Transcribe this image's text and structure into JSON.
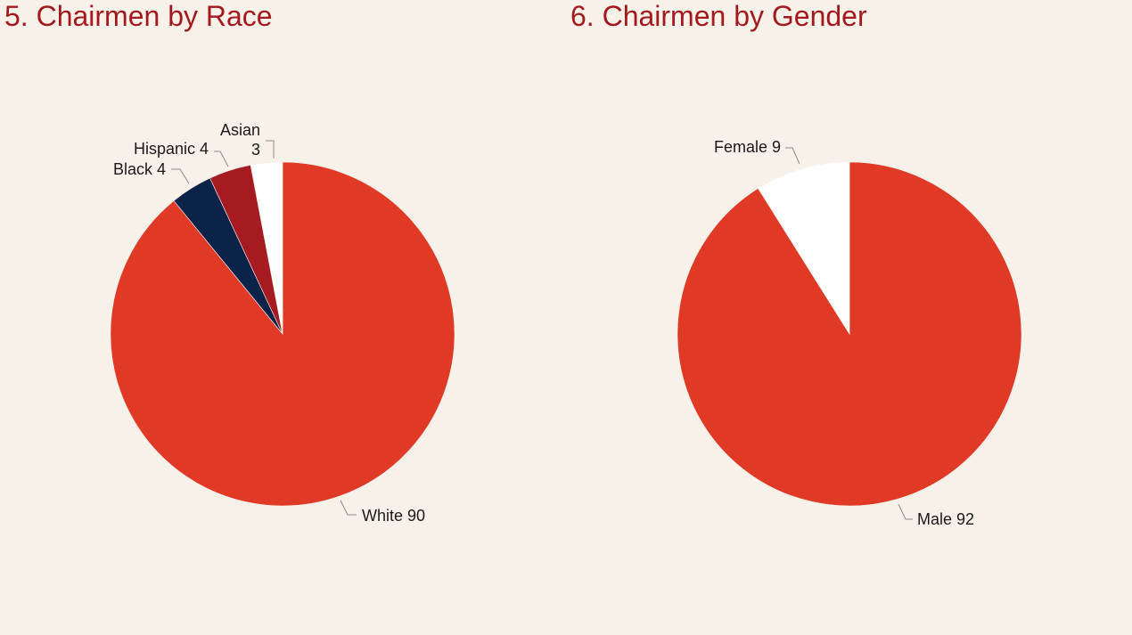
{
  "chart_data": [
    {
      "type": "pie",
      "title": "5. Chairmen by Race",
      "slices": [
        {
          "label": "White",
          "value": 90,
          "color": "#e03a26"
        },
        {
          "label": "Black",
          "value": 4,
          "color": "#0b2348"
        },
        {
          "label": "Hispanic",
          "value": 4,
          "color": "#a51b21"
        },
        {
          "label": "Asian",
          "value": 3,
          "color": "#ffffff"
        }
      ]
    },
    {
      "type": "pie",
      "title": "6. Chairmen by Gender",
      "slices": [
        {
          "label": "Male",
          "value": 92,
          "color": "#e03a26"
        },
        {
          "label": "Female",
          "value": 9,
          "color": "#ffffff"
        }
      ]
    }
  ]
}
